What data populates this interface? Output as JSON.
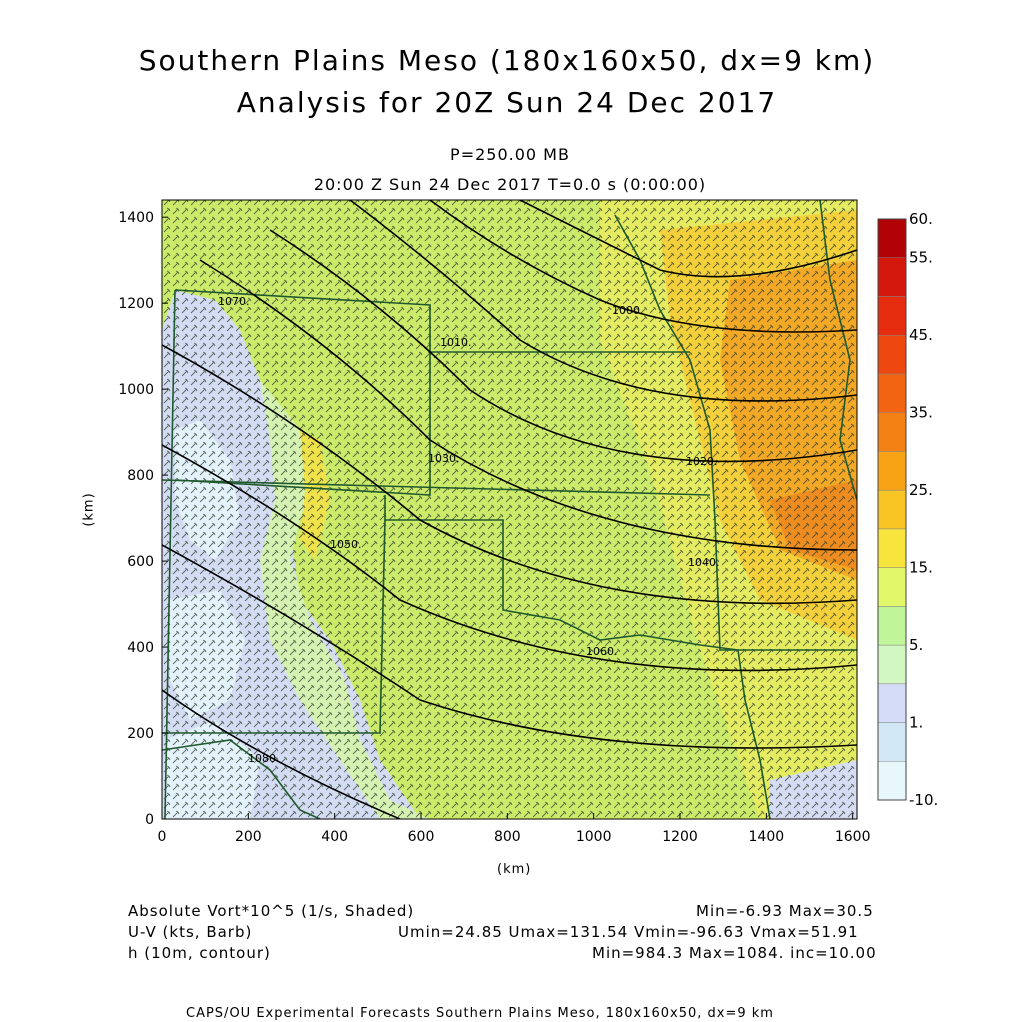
{
  "title_line1": "Southern Plains Meso (180x160x50, dx=9 km)",
  "title_line2": "Analysis for 20Z Sun 24 Dec 2017",
  "level": "P=250.00 MB",
  "valid_time": "20:00 Z Sun 24 Dec 2017    T=0.0 s (0:00:00)",
  "x_axis": {
    "label": "(km)",
    "ticks": [
      "0",
      "200",
      "400",
      "600",
      "800",
      "1000",
      "1200",
      "1400",
      "1600"
    ]
  },
  "y_axis": {
    "label": "(km)",
    "ticks": [
      "0",
      "200",
      "400",
      "600",
      "800",
      "1000",
      "1200",
      "1400"
    ]
  },
  "colorbar": {
    "labels": [
      "60.",
      "55.",
      "45.",
      "35.",
      "25.",
      "15.",
      "5.",
      "1.",
      "-10."
    ],
    "colors": [
      "#e8f7fb",
      "#d2e8f6",
      "#d5dcf7",
      "#d3f7c2",
      "#c0f59a",
      "#e2f76a",
      "#f7e53d",
      "#f8c525",
      "#f8a215",
      "#f48113",
      "#f26412",
      "#ee4710",
      "#e52c0e",
      "#d4170c",
      "#b10206"
    ]
  },
  "contour_labels": [
    "1000.",
    "1010.",
    "1020.",
    "1030.",
    "1040.",
    "1050.",
    "1060.",
    "1070.",
    "1080."
  ],
  "footer": {
    "field1": "Absolute Vort*10^5 (1/s, Shaded)",
    "stats1": "Min=-6.93 Max=30.5",
    "field2": "U-V (kts, Barb)",
    "stats2": "Umin=24.85 Umax=131.54 Vmin=-96.63 Vmax=51.91",
    "field3": "h (10m, contour)",
    "stats3": "Min=984.3 Max=1084. inc=10.00",
    "credit": "CAPS/OU Experimental Forecasts  Southern Plains Meso, 180x160x50, dx=9 km"
  }
}
